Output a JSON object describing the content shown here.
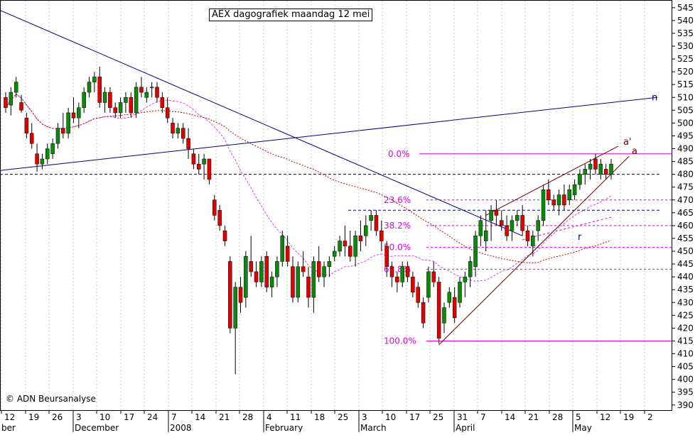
{
  "header": {
    "title": "AEX dagografiek maandag 12 mei"
  },
  "footer": {
    "copyright": "© ADN Beursanalyse"
  },
  "chart_data": {
    "type": "candlestick",
    "title": "AEX dagografiek maandag 12 mei",
    "y_axis": {
      "position": "right",
      "min": 388,
      "max": 548,
      "ticks": [
        390,
        395,
        400,
        405,
        410,
        415,
        420,
        425,
        430,
        435,
        440,
        445,
        450,
        455,
        460,
        465,
        470,
        475,
        480,
        485,
        490,
        495,
        500,
        505,
        510,
        515,
        520,
        525,
        530,
        535,
        540,
        545
      ]
    },
    "x_day_ticks": [
      "12",
      "19",
      "26",
      "3",
      "10",
      "17",
      "24",
      "7",
      "14",
      "21",
      "28",
      "4",
      "11",
      "18",
      "25",
      "3",
      "10",
      "17",
      "25",
      "31",
      "7",
      "14",
      "21",
      "28",
      "5",
      "12",
      "19",
      "2"
    ],
    "x_month_labels": [
      "ber",
      "December",
      "2008",
      "February",
      "March",
      "April",
      "May"
    ],
    "fibonacci_levels": [
      {
        "label": "0.0%",
        "value": 488
      },
      {
        "label": "23.6%",
        "value": 470
      },
      {
        "label": "38.2%",
        "value": 460
      },
      {
        "label": "50.0%",
        "value": 451.5
      },
      {
        "label": "61.8%",
        "value": 443
      },
      {
        "label": "100.0%",
        "value": 415
      }
    ],
    "horizontal_levels": [
      480,
      466
    ],
    "trendline_labels": [
      "n",
      "a'",
      "a",
      "r"
    ],
    "candles": [
      [
        510,
        512,
        504,
        506
      ],
      [
        507,
        514,
        503,
        512
      ],
      [
        512,
        518,
        510,
        516
      ],
      [
        508,
        511,
        504,
        505
      ],
      [
        502,
        504,
        494,
        496
      ],
      [
        496,
        500,
        490,
        492
      ],
      [
        488,
        492,
        481,
        484
      ],
      [
        484,
        488,
        482,
        486
      ],
      [
        486,
        492,
        484,
        490
      ],
      [
        488,
        494,
        486,
        492
      ],
      [
        492,
        500,
        490,
        498
      ],
      [
        498,
        504,
        494,
        496
      ],
      [
        496,
        506,
        494,
        504
      ],
      [
        504,
        510,
        500,
        502
      ],
      [
        502,
        508,
        498,
        506
      ],
      [
        506,
        514,
        504,
        512
      ],
      [
        512,
        518,
        510,
        516
      ],
      [
        516,
        520,
        512,
        518
      ],
      [
        518,
        522,
        506,
        508
      ],
      [
        508,
        514,
        504,
        512
      ],
      [
        512,
        514,
        504,
        506
      ],
      [
        506,
        508,
        502,
        504
      ],
      [
        504,
        510,
        502,
        508
      ],
      [
        508,
        512,
        504,
        510
      ],
      [
        510,
        512,
        502,
        504
      ],
      [
        504,
        516,
        502,
        514
      ],
      [
        514,
        518,
        510,
        512
      ],
      [
        510,
        514,
        508,
        512
      ],
      [
        514,
        516,
        510,
        514
      ],
      [
        514,
        516,
        508,
        510
      ],
      [
        510,
        512,
        504,
        506
      ],
      [
        506,
        510,
        500,
        502
      ],
      [
        500,
        502,
        494,
        496
      ],
      [
        496,
        500,
        494,
        498
      ],
      [
        498,
        500,
        492,
        494
      ],
      [
        494,
        498,
        486,
        490
      ],
      [
        488,
        490,
        482,
        484
      ],
      [
        484,
        488,
        480,
        482
      ],
      [
        484,
        488,
        478,
        486
      ],
      [
        486,
        486,
        476,
        478
      ],
      [
        470,
        472,
        462,
        464
      ],
      [
        466,
        468,
        458,
        460
      ],
      [
        458,
        460,
        452,
        454
      ],
      [
        446,
        448,
        418,
        420
      ],
      [
        420,
        438,
        402,
        436
      ],
      [
        436,
        440,
        426,
        430
      ],
      [
        432,
        450,
        428,
        448
      ],
      [
        446,
        456,
        440,
        442
      ],
      [
        442,
        446,
        436,
        438
      ],
      [
        438,
        448,
        436,
        446
      ],
      [
        448,
        450,
        434,
        436
      ],
      [
        436,
        442,
        432,
        440
      ],
      [
        440,
        448,
        436,
        446
      ],
      [
        446,
        458,
        444,
        456
      ],
      [
        452,
        456,
        444,
        446
      ],
      [
        444,
        448,
        430,
        432
      ],
      [
        432,
        446,
        430,
        444
      ],
      [
        444,
        450,
        440,
        442
      ],
      [
        440,
        444,
        428,
        432
      ],
      [
        432,
        448,
        426,
        446
      ],
      [
        446,
        452,
        438,
        440
      ],
      [
        440,
        446,
        436,
        444
      ],
      [
        444,
        448,
        440,
        446
      ],
      [
        448,
        452,
        446,
        450
      ],
      [
        450,
        456,
        448,
        454
      ],
      [
        454,
        460,
        448,
        452
      ],
      [
        452,
        458,
        446,
        448
      ],
      [
        448,
        458,
        444,
        456
      ],
      [
        456,
        462,
        450,
        454
      ],
      [
        456,
        464,
        452,
        460
      ],
      [
        462,
        466,
        458,
        464
      ],
      [
        464,
        466,
        456,
        458
      ],
      [
        458,
        462,
        450,
        454
      ],
      [
        452,
        454,
        440,
        444
      ],
      [
        444,
        446,
        436,
        440
      ],
      [
        440,
        442,
        434,
        438
      ],
      [
        438,
        446,
        436,
        444
      ],
      [
        444,
        446,
        438,
        440
      ],
      [
        440,
        442,
        432,
        434
      ],
      [
        436,
        438,
        428,
        430
      ],
      [
        430,
        432,
        420,
        422
      ],
      [
        432,
        444,
        430,
        442
      ],
      [
        442,
        446,
        436,
        438
      ],
      [
        438,
        440,
        414,
        416
      ],
      [
        422,
        430,
        418,
        428
      ],
      [
        430,
        436,
        428,
        434
      ],
      [
        432,
        436,
        422,
        424
      ],
      [
        430,
        440,
        428,
        438
      ],
      [
        438,
        442,
        432,
        440
      ],
      [
        440,
        448,
        436,
        446
      ],
      [
        444,
        458,
        440,
        456
      ],
      [
        456,
        464,
        452,
        462
      ],
      [
        454,
        466,
        450,
        458
      ],
      [
        462,
        468,
        454,
        466
      ],
      [
        466,
        470,
        460,
        464
      ],
      [
        462,
        466,
        458,
        460
      ],
      [
        460,
        464,
        454,
        456
      ],
      [
        458,
        464,
        454,
        462
      ],
      [
        462,
        466,
        460,
        464
      ],
      [
        464,
        468,
        456,
        458
      ],
      [
        458,
        460,
        452,
        454
      ],
      [
        452,
        458,
        448,
        456
      ],
      [
        458,
        464,
        454,
        462
      ],
      [
        462,
        476,
        460,
        474
      ],
      [
        474,
        478,
        468,
        470
      ],
      [
        470,
        472,
        466,
        468
      ],
      [
        468,
        474,
        464,
        472
      ],
      [
        472,
        476,
        466,
        468
      ],
      [
        470,
        476,
        468,
        474
      ],
      [
        472,
        478,
        470,
        476
      ],
      [
        476,
        482,
        474,
        480
      ],
      [
        480,
        484,
        476,
        482
      ],
      [
        482,
        486,
        478,
        484
      ],
      [
        486,
        488,
        480,
        482
      ],
      [
        480,
        486,
        478,
        484
      ],
      [
        482,
        484,
        478,
        480
      ],
      [
        480,
        486,
        478,
        484
      ]
    ]
  }
}
